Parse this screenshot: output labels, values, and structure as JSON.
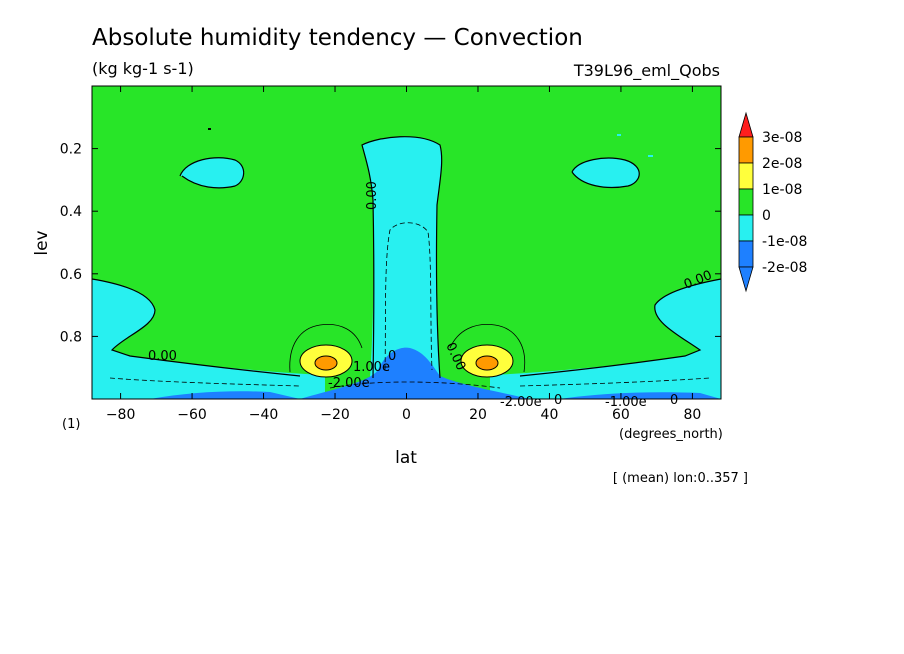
{
  "chart_data": {
    "type": "heatmap",
    "title": "Absolute humidity tendency — Convection",
    "subtitle": "(kg kg-1 s-1)",
    "experiment": "T39L96_eml_Qobs",
    "xlabel": "lat",
    "x_units": "(degrees_north)",
    "ylabel": "lev",
    "panel_label": "(1)",
    "footnote": "[ (mean) lon:0..357 ]",
    "xlim": [
      -88,
      88
    ],
    "ylim": [
      0.0,
      1.0
    ],
    "y_inverted": true,
    "x_ticks": [
      -80,
      -60,
      -40,
      -20,
      0,
      20,
      40,
      60,
      80
    ],
    "y_ticks": [
      0.2,
      0.4,
      0.6,
      0.8
    ],
    "x_tick_labels": [
      "−80",
      "−60",
      "−40",
      "−20",
      "0",
      "20",
      "40",
      "60",
      "80"
    ],
    "y_tick_labels": [
      "0.2",
      "0.4",
      "0.6",
      "0.8"
    ],
    "colorbar": {
      "levels": [
        {
          "label": "3e-08",
          "color": "#ff1e1e"
        },
        {
          "label": "2e-08",
          "color": "#ff9a00"
        },
        {
          "label": "1e-08",
          "color": "#ffff3c"
        },
        {
          "label": "0",
          "color": "#28e528"
        },
        {
          "label": "-1e-08",
          "color": "#28f0f0"
        },
        {
          "label": "-2e-08",
          "color": "#1e80ff"
        }
      ],
      "top_triangle_color": "#ff1e1e",
      "bottom_triangle_color": "#1e80ff"
    },
    "contour_labels": [
      "0.00",
      "0.00",
      "0.00",
      "0.00",
      "0",
      "0",
      "1.00e",
      "-2.00e",
      "-2.00e",
      "-1.00e",
      "0"
    ],
    "regions": [
      {
        "name": "background",
        "level": "0",
        "color": "#28e528"
      },
      {
        "name": "equatorial-column",
        "level": "-1e-08",
        "color": "#28f0f0"
      },
      {
        "name": "boundary-layer",
        "level": "-1e-08",
        "color": "#28f0f0"
      },
      {
        "name": "equatorial-low",
        "level": "-2e-08",
        "color": "#1e80ff"
      },
      {
        "name": "subtropical-peak-south",
        "level": "1e-08",
        "color": "#ffff3c",
        "lat": -22,
        "lev": 0.89
      },
      {
        "name": "subtropical-peak-north",
        "level": "1e-08",
        "color": "#ffff3c",
        "lat": 22,
        "lev": 0.89
      }
    ]
  }
}
